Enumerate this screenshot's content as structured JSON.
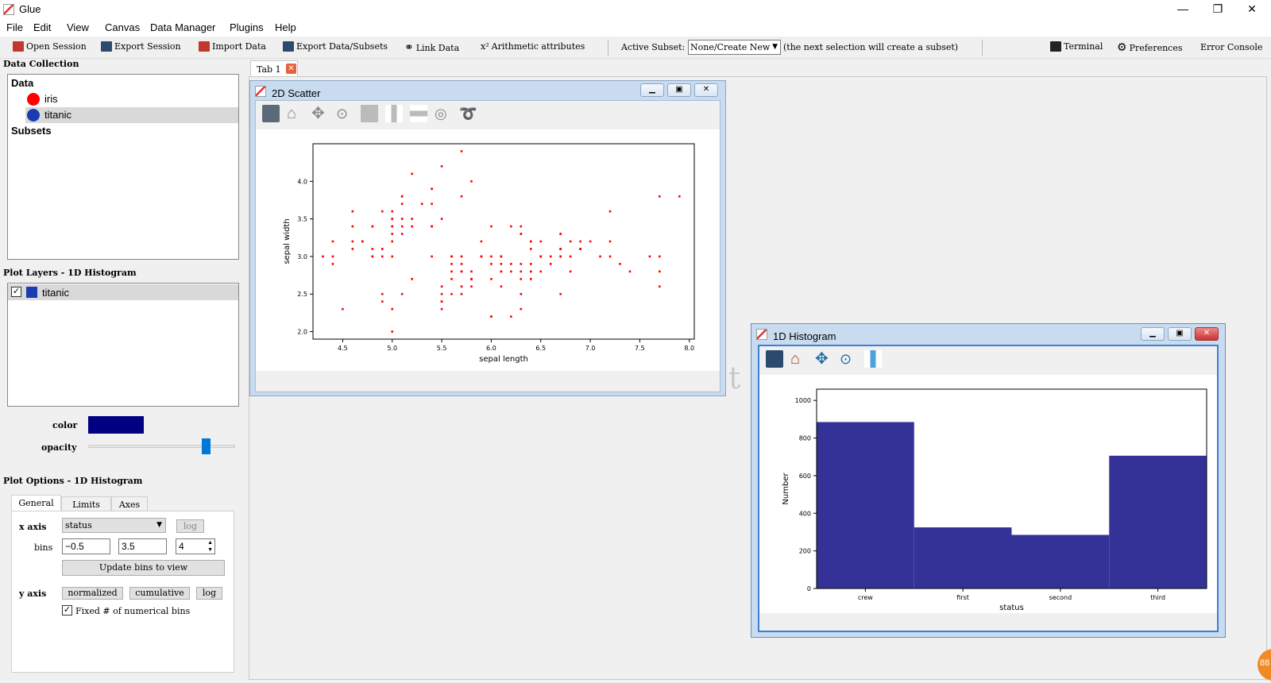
{
  "app": {
    "title": "Glue"
  },
  "window_controls": {
    "minimize": "—",
    "restore": "❐",
    "close": "✕"
  },
  "menu": [
    "File",
    "Edit",
    "View",
    "Canvas",
    "Data Manager",
    "Plugins",
    "Help"
  ],
  "toolbar": {
    "open_session": "Open Session",
    "export_session": "Export Session",
    "import_data": "Import Data",
    "export_data": "Export Data/Subsets",
    "link_data": "Link Data",
    "arithmetic": "Arithmetic attributes",
    "active_subset_label": "Active Subset:",
    "active_subset_value": "None/Create New",
    "subset_hint": "(the next selection will create a subset)",
    "terminal": "Terminal",
    "preferences": "Preferences",
    "error_console": "Error Console"
  },
  "data_collection": {
    "title": "Data Collection",
    "data_header": "Data",
    "items": [
      {
        "label": "iris",
        "color": "#ff0000"
      },
      {
        "label": "titanic",
        "color": "#1a3cb0"
      }
    ],
    "subsets_header": "Subsets"
  },
  "plot_layers": {
    "title": "Plot Layers - 1D Histogram",
    "items": [
      {
        "label": "titanic",
        "checked": true,
        "color": "#1a3cb0"
      }
    ],
    "color_label": "color",
    "color_value": "#000080",
    "opacity_label": "opacity",
    "opacity": 0.8
  },
  "plot_options": {
    "title": "Plot Options - 1D Histogram",
    "tabs": [
      "General",
      "Limits",
      "Axes"
    ],
    "x_axis_label": "x axis",
    "x_axis_value": "status",
    "log_label": "log",
    "bins_label": "bins",
    "bins_min": "−0.5",
    "bins_max": "3.5",
    "bins_count": "4",
    "update_bins": "Update bins to view",
    "y_axis_label": "y axis",
    "normalized": "normalized",
    "cumulative": "cumulative",
    "y_log": "log",
    "fixed_bins_label": "Fixed # of numerical bins",
    "fixed_bins_checked": true
  },
  "tabs": [
    {
      "label": "Tab 1"
    }
  ],
  "scatter_window": {
    "title": "2D Scatter"
  },
  "histogram_window": {
    "title": "1D Histogram"
  },
  "badge": {
    "text": "88"
  },
  "chart_data": [
    {
      "type": "scatter",
      "xlabel": "sepal length",
      "ylabel": "sepal width",
      "xlim": [
        4.2,
        8.05
      ],
      "ylim": [
        1.9,
        4.5
      ],
      "xticks": [
        "4.5",
        "5.0",
        "5.5",
        "6.0",
        "6.5",
        "7.0",
        "7.5",
        "8.0"
      ],
      "yticks": [
        "2.0",
        "2.5",
        "3.0",
        "3.5",
        "4.0"
      ],
      "color": "#ff0000",
      "points": [
        [
          5.1,
          3.5
        ],
        [
          4.9,
          3.0
        ],
        [
          4.7,
          3.2
        ],
        [
          4.6,
          3.1
        ],
        [
          5.0,
          3.6
        ],
        [
          5.4,
          3.9
        ],
        [
          4.6,
          3.4
        ],
        [
          5.0,
          3.4
        ],
        [
          4.4,
          2.9
        ],
        [
          4.9,
          3.1
        ],
        [
          5.4,
          3.7
        ],
        [
          4.8,
          3.4
        ],
        [
          4.8,
          3.0
        ],
        [
          4.3,
          3.0
        ],
        [
          5.8,
          4.0
        ],
        [
          5.7,
          4.4
        ],
        [
          5.4,
          3.9
        ],
        [
          5.1,
          3.5
        ],
        [
          5.7,
          3.8
        ],
        [
          5.1,
          3.8
        ],
        [
          5.4,
          3.4
        ],
        [
          5.1,
          3.7
        ],
        [
          4.6,
          3.6
        ],
        [
          5.1,
          3.3
        ],
        [
          4.8,
          3.4
        ],
        [
          5.0,
          3.0
        ],
        [
          5.0,
          3.4
        ],
        [
          5.2,
          3.5
        ],
        [
          5.2,
          3.4
        ],
        [
          4.7,
          3.2
        ],
        [
          4.8,
          3.1
        ],
        [
          5.4,
          3.4
        ],
        [
          5.2,
          4.1
        ],
        [
          5.5,
          4.2
        ],
        [
          4.9,
          3.1
        ],
        [
          5.0,
          3.2
        ],
        [
          5.5,
          3.5
        ],
        [
          4.9,
          3.6
        ],
        [
          4.4,
          3.0
        ],
        [
          5.1,
          3.4
        ],
        [
          5.0,
          3.5
        ],
        [
          4.5,
          2.3
        ],
        [
          4.4,
          3.2
        ],
        [
          5.0,
          3.5
        ],
        [
          5.1,
          3.8
        ],
        [
          4.8,
          3.0
        ],
        [
          5.1,
          3.8
        ],
        [
          4.6,
          3.2
        ],
        [
          5.3,
          3.7
        ],
        [
          5.0,
          3.3
        ],
        [
          7.0,
          3.2
        ],
        [
          6.4,
          3.2
        ],
        [
          6.9,
          3.1
        ],
        [
          5.5,
          2.3
        ],
        [
          6.5,
          2.8
        ],
        [
          5.7,
          2.8
        ],
        [
          6.3,
          3.3
        ],
        [
          4.9,
          2.4
        ],
        [
          6.6,
          2.9
        ],
        [
          5.2,
          2.7
        ],
        [
          5.0,
          2.0
        ],
        [
          5.9,
          3.0
        ],
        [
          6.0,
          2.2
        ],
        [
          6.1,
          2.9
        ],
        [
          5.6,
          2.9
        ],
        [
          6.7,
          3.1
        ],
        [
          5.6,
          3.0
        ],
        [
          5.8,
          2.7
        ],
        [
          6.2,
          2.2
        ],
        [
          5.6,
          2.5
        ],
        [
          5.9,
          3.2
        ],
        [
          6.1,
          2.8
        ],
        [
          6.3,
          2.5
        ],
        [
          6.1,
          2.8
        ],
        [
          6.4,
          2.9
        ],
        [
          6.6,
          3.0
        ],
        [
          6.8,
          2.8
        ],
        [
          6.7,
          3.0
        ],
        [
          6.0,
          2.9
        ],
        [
          5.7,
          2.6
        ],
        [
          5.5,
          2.4
        ],
        [
          5.5,
          2.4
        ],
        [
          5.8,
          2.7
        ],
        [
          6.0,
          2.7
        ],
        [
          5.4,
          3.0
        ],
        [
          6.0,
          3.4
        ],
        [
          6.7,
          3.1
        ],
        [
          6.3,
          2.3
        ],
        [
          5.6,
          3.0
        ],
        [
          5.5,
          2.5
        ],
        [
          5.5,
          2.6
        ],
        [
          6.1,
          3.0
        ],
        [
          5.8,
          2.6
        ],
        [
          5.0,
          2.3
        ],
        [
          5.6,
          2.7
        ],
        [
          5.7,
          3.0
        ],
        [
          5.7,
          2.9
        ],
        [
          6.2,
          2.9
        ],
        [
          5.1,
          2.5
        ],
        [
          5.7,
          2.8
        ],
        [
          6.3,
          3.3
        ],
        [
          5.8,
          2.7
        ],
        [
          7.1,
          3.0
        ],
        [
          6.3,
          2.9
        ],
        [
          6.5,
          3.0
        ],
        [
          7.6,
          3.0
        ],
        [
          4.9,
          2.5
        ],
        [
          7.3,
          2.9
        ],
        [
          6.7,
          2.5
        ],
        [
          7.2,
          3.6
        ],
        [
          6.5,
          3.2
        ],
        [
          6.4,
          2.7
        ],
        [
          6.8,
          3.0
        ],
        [
          5.7,
          2.5
        ],
        [
          5.8,
          2.8
        ],
        [
          6.4,
          3.2
        ],
        [
          6.5,
          3.0
        ],
        [
          7.7,
          3.8
        ],
        [
          7.7,
          2.6
        ],
        [
          6.0,
          2.2
        ],
        [
          6.9,
          3.2
        ],
        [
          5.6,
          2.8
        ],
        [
          7.7,
          2.8
        ],
        [
          6.3,
          2.7
        ],
        [
          6.7,
          3.3
        ],
        [
          7.2,
          3.2
        ],
        [
          6.2,
          2.8
        ],
        [
          6.1,
          3.0
        ],
        [
          6.4,
          2.8
        ],
        [
          7.2,
          3.0
        ],
        [
          7.4,
          2.8
        ],
        [
          7.9,
          3.8
        ],
        [
          6.4,
          2.8
        ],
        [
          6.3,
          2.8
        ],
        [
          6.1,
          2.6
        ],
        [
          7.7,
          3.0
        ],
        [
          6.3,
          3.4
        ],
        [
          6.4,
          3.1
        ],
        [
          6.0,
          3.0
        ],
        [
          6.9,
          3.1
        ],
        [
          6.7,
          3.1
        ],
        [
          6.9,
          3.1
        ],
        [
          5.8,
          2.7
        ],
        [
          6.8,
          3.2
        ],
        [
          6.7,
          3.3
        ],
        [
          6.7,
          3.0
        ],
        [
          6.3,
          2.5
        ],
        [
          6.5,
          3.0
        ],
        [
          6.2,
          3.4
        ],
        [
          5.9,
          3.0
        ]
      ]
    },
    {
      "type": "bar",
      "xlabel": "status",
      "ylabel": "Number",
      "categories": [
        "crew",
        "first",
        "second",
        "third"
      ],
      "values": [
        885,
        325,
        285,
        706
      ],
      "ylim": [
        0,
        1060
      ],
      "yticks": [
        "0",
        "200",
        "400",
        "600",
        "800",
        "1000"
      ],
      "color": "#353297"
    }
  ]
}
